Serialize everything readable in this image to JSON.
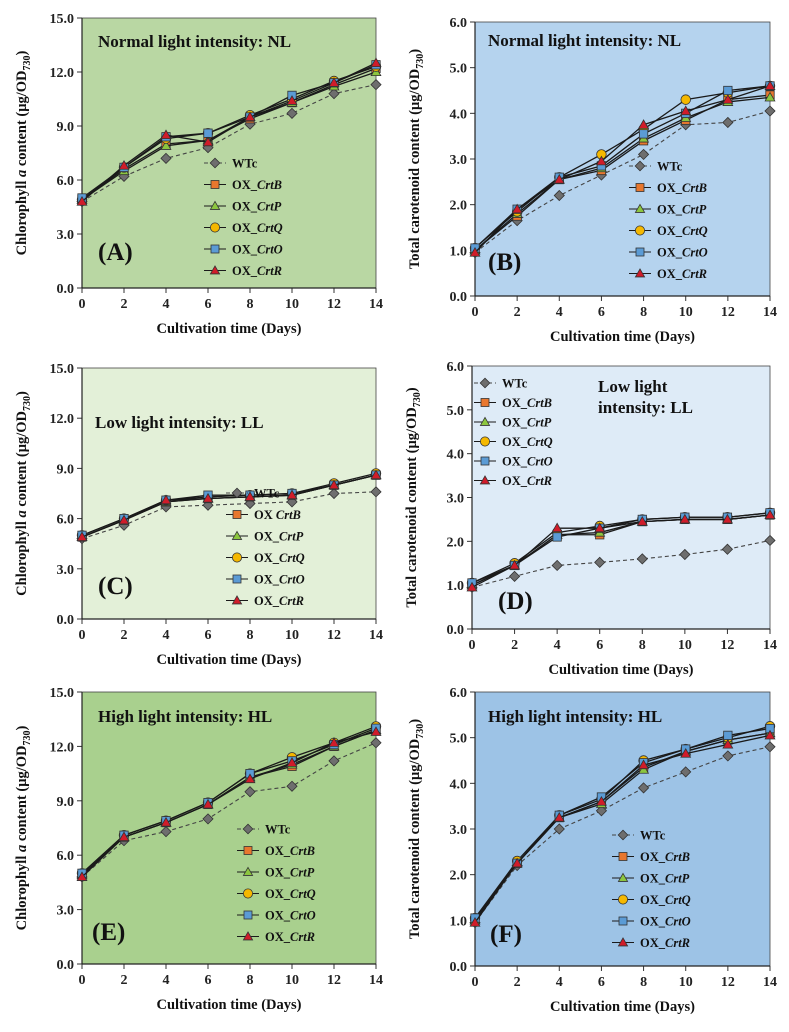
{
  "figure_colors": {
    "WTc": "#6e6e6e",
    "OX_CrtB": "#e8772e",
    "OX_CrtP": "#8cc63f",
    "OX_CrtQ": "#f5b800",
    "OX_CrtO": "#5b9bd5",
    "OX_CrtR": "#d01c2a"
  },
  "chart_data": [
    {
      "type": "line",
      "panel": "A",
      "title": "Normal light intensity: NL",
      "xlabel": "Cultivation time (Days)",
      "ylabel": "Chlorophyll a content (μg/OD730)",
      "ylabel_parts": [
        "Chlorophyll ",
        "a",
        " content (μg/OD",
        "730",
        ")"
      ],
      "x": [
        0,
        2,
        4,
        6,
        8,
        10,
        12,
        14
      ],
      "xticks": [
        "0",
        "2",
        "4",
        "6",
        "8",
        "10",
        "12",
        "14"
      ],
      "yticks": [
        "0.0",
        "3.0",
        "6.0",
        "9.0",
        "12.0",
        "15.0"
      ],
      "xlim": [
        0,
        14
      ],
      "ylim": [
        0,
        15
      ],
      "background": "#b9d7a3",
      "legend_position": "center-right",
      "series": [
        {
          "name": "WTc",
          "label_prefix": "WTc",
          "label_gene": "",
          "values": [
            4.8,
            6.2,
            7.2,
            7.8,
            9.1,
            9.7,
            10.8,
            11.3
          ]
        },
        {
          "name": "OX_CrtB",
          "label_prefix": "OX_",
          "label_gene": "CrtB",
          "values": [
            4.9,
            6.6,
            8.0,
            8.2,
            9.4,
            10.3,
            11.3,
            12.2
          ]
        },
        {
          "name": "OX_CrtP",
          "label_prefix": "OX_",
          "label_gene": "CrtP",
          "values": [
            4.9,
            6.5,
            7.9,
            8.2,
            9.5,
            10.3,
            11.2,
            12.0
          ]
        },
        {
          "name": "OX_CrtQ",
          "label_prefix": "OX_",
          "label_gene": "CrtQ",
          "values": [
            4.9,
            6.7,
            8.3,
            8.6,
            9.6,
            10.5,
            11.5,
            12.3
          ]
        },
        {
          "name": "OX_CrtO",
          "label_prefix": "OX_",
          "label_gene": "CrtO",
          "values": [
            5.0,
            6.7,
            8.4,
            8.6,
            9.5,
            10.7,
            11.4,
            12.4
          ]
        },
        {
          "name": "OX_CrtR",
          "label_prefix": "OX_",
          "label_gene": "CrtR",
          "values": [
            4.8,
            6.8,
            8.5,
            8.1,
            9.5,
            10.4,
            11.4,
            12.5
          ]
        }
      ]
    },
    {
      "type": "line",
      "panel": "B",
      "title": "Normal light intensity: NL",
      "xlabel": "Cultivation time (Days)",
      "ylabel": "Total carotenoid content (μg/OD730)",
      "ylabel_parts": [
        "Total carotenoid content (μg/OD",
        "730",
        ")"
      ],
      "x": [
        0,
        2,
        4,
        6,
        8,
        10,
        12,
        14
      ],
      "xticks": [
        "0",
        "2",
        "4",
        "6",
        "8",
        "10",
        "12",
        "14"
      ],
      "yticks": [
        "0.0",
        "1.0",
        "2.0",
        "3.0",
        "4.0",
        "5.0",
        "6.0"
      ],
      "xlim": [
        0,
        14
      ],
      "ylim": [
        0,
        6
      ],
      "background": "#b5d3ee",
      "legend_position": "center-right",
      "series": [
        {
          "name": "WTc",
          "label_prefix": "WTc",
          "label_gene": "",
          "values": [
            0.95,
            1.65,
            2.2,
            2.65,
            3.1,
            3.75,
            3.8,
            4.05
          ]
        },
        {
          "name": "OX_CrtB",
          "label_prefix": "OX_",
          "label_gene": "CrtB",
          "values": [
            1.0,
            1.75,
            2.55,
            2.75,
            3.4,
            3.85,
            4.3,
            4.4
          ]
        },
        {
          "name": "OX_CrtP",
          "label_prefix": "OX_",
          "label_gene": "CrtP",
          "values": [
            1.0,
            1.8,
            2.55,
            2.8,
            3.45,
            3.9,
            4.25,
            4.35
          ]
        },
        {
          "name": "OX_CrtQ",
          "label_prefix": "OX_",
          "label_gene": "CrtQ",
          "values": [
            1.05,
            1.85,
            2.6,
            3.1,
            3.65,
            4.3,
            4.45,
            4.6
          ]
        },
        {
          "name": "OX_CrtO",
          "label_prefix": "OX_",
          "label_gene": "CrtO",
          "values": [
            1.05,
            1.9,
            2.6,
            2.85,
            3.55,
            4.0,
            4.5,
            4.6
          ]
        },
        {
          "name": "OX_CrtR",
          "label_prefix": "OX_",
          "label_gene": "CrtR",
          "values": [
            0.95,
            1.9,
            2.55,
            2.95,
            3.75,
            4.05,
            4.3,
            4.6
          ]
        }
      ]
    },
    {
      "type": "line",
      "panel": "C",
      "title": "Low light intensity: LL",
      "xlabel": "Cultivation time (Days)",
      "ylabel": "Chlorophyll a content (μg/OD730)",
      "ylabel_parts": [
        "Chlorophyll ",
        "a",
        " content (μg/OD",
        "730",
        ")"
      ],
      "x": [
        0,
        2,
        4,
        6,
        8,
        10,
        12,
        14
      ],
      "xticks": [
        "0",
        "2",
        "4",
        "6",
        "8",
        "10",
        "12",
        "14"
      ],
      "yticks": [
        "0.0",
        "3.0",
        "6.0",
        "9.0",
        "12.0",
        "15.0"
      ],
      "xlim": [
        0,
        14
      ],
      "ylim": [
        0,
        15
      ],
      "background": "#e3f0d8",
      "legend_position": "lower-right",
      "series": [
        {
          "name": "WTc",
          "label_prefix": "WTc",
          "label_gene": "",
          "values": [
            4.8,
            5.6,
            6.7,
            6.8,
            6.9,
            7.0,
            7.5,
            7.6
          ]
        },
        {
          "name": "OX_CrtB",
          "label_prefix": "OX  ",
          "label_gene": "CrtB",
          "values": [
            4.9,
            5.9,
            7.0,
            7.2,
            7.3,
            7.4,
            8.0,
            8.6
          ]
        },
        {
          "name": "OX_CrtP",
          "label_prefix": "OX_",
          "label_gene": "CrtP",
          "values": [
            4.9,
            5.9,
            7.0,
            7.2,
            7.3,
            7.4,
            8.0,
            8.6
          ]
        },
        {
          "name": "OX_CrtQ",
          "label_prefix": "OX_",
          "label_gene": "CrtQ",
          "values": [
            5.0,
            6.0,
            7.1,
            7.3,
            7.4,
            7.5,
            8.1,
            8.7
          ]
        },
        {
          "name": "OX_CrtO",
          "label_prefix": "OX_",
          "label_gene": "CrtO",
          "values": [
            5.0,
            6.0,
            7.1,
            7.4,
            7.4,
            7.5,
            8.0,
            8.6
          ]
        },
        {
          "name": "OX_CrtR",
          "label_prefix": "OX_",
          "label_gene": "CrtR",
          "values": [
            4.9,
            5.9,
            7.1,
            7.2,
            7.3,
            7.4,
            8.0,
            8.6
          ]
        }
      ]
    },
    {
      "type": "line",
      "panel": "D",
      "title": "Low light intensity: LL",
      "title_lines": [
        "Low light",
        "intensity: LL"
      ],
      "xlabel": "Cultivation time (Days)",
      "ylabel": "Total carotenoid content (μg/OD730)",
      "ylabel_parts": [
        "Total carotenoid content (μg/OD",
        "730",
        ")"
      ],
      "x": [
        0,
        2,
        4,
        6,
        8,
        10,
        12,
        14
      ],
      "xticks": [
        "0",
        "2",
        "4",
        "6",
        "8",
        "10",
        "12",
        "14"
      ],
      "yticks": [
        "0.0",
        "1.0",
        "2.0",
        "3.0",
        "4.0",
        "5.0",
        "6.0"
      ],
      "xlim": [
        0,
        14
      ],
      "ylim": [
        0,
        6
      ],
      "background": "#deebf7",
      "legend_position": "upper-left",
      "series": [
        {
          "name": "WTc",
          "label_prefix": "WTc",
          "label_gene": "",
          "values": [
            0.95,
            1.2,
            1.45,
            1.52,
            1.6,
            1.7,
            1.82,
            2.02
          ]
        },
        {
          "name": "OX_CrtB",
          "label_prefix": "OX_",
          "label_gene": "CrtB",
          "values": [
            1.0,
            1.45,
            2.15,
            2.15,
            2.45,
            2.5,
            2.5,
            2.6
          ]
        },
        {
          "name": "OX_CrtP",
          "label_prefix": "OX_",
          "label_gene": "CrtP",
          "values": [
            1.0,
            1.45,
            2.15,
            2.2,
            2.45,
            2.5,
            2.5,
            2.6
          ]
        },
        {
          "name": "OX_CrtQ",
          "label_prefix": "OX_",
          "label_gene": "CrtQ",
          "values": [
            1.05,
            1.5,
            2.2,
            2.35,
            2.5,
            2.55,
            2.55,
            2.65
          ]
        },
        {
          "name": "OX_CrtO",
          "label_prefix": "OX_",
          "label_gene": "CrtO",
          "values": [
            1.05,
            1.45,
            2.1,
            2.3,
            2.5,
            2.55,
            2.55,
            2.65
          ]
        },
        {
          "name": "OX_CrtR",
          "label_prefix": "OX_",
          "label_gene": "CrtR",
          "values": [
            0.95,
            1.45,
            2.3,
            2.3,
            2.45,
            2.5,
            2.5,
            2.6
          ]
        }
      ]
    },
    {
      "type": "line",
      "panel": "E",
      "title": "High light intensity: HL",
      "xlabel": "Cultivation time (Days)",
      "ylabel": "Chlorophyll a content (μg/OD730)",
      "ylabel_parts": [
        "Chlorophyll ",
        "a",
        " content (μg/OD",
        "730",
        ")"
      ],
      "x": [
        0,
        2,
        4,
        6,
        8,
        10,
        12,
        14
      ],
      "xticks": [
        "0",
        "2",
        "4",
        "6",
        "8",
        "10",
        "12",
        "14"
      ],
      "yticks": [
        "0.0",
        "3.0",
        "6.0",
        "9.0",
        "12.0",
        "15.0"
      ],
      "xlim": [
        0,
        14
      ],
      "ylim": [
        0,
        15
      ],
      "background": "#a9d08e",
      "legend_position": "lower-right",
      "series": [
        {
          "name": "WTc",
          "label_prefix": "WTc",
          "label_gene": "",
          "values": [
            4.8,
            6.8,
            7.3,
            8.0,
            9.5,
            9.8,
            11.2,
            12.2
          ]
        },
        {
          "name": "OX_CrtB",
          "label_prefix": "OX_",
          "label_gene": "CrtB",
          "values": [
            4.9,
            7.0,
            7.8,
            8.8,
            10.3,
            10.9,
            12.0,
            12.9
          ]
        },
        {
          "name": "OX_CrtP",
          "label_prefix": "OX_",
          "label_gene": "CrtP",
          "values": [
            4.9,
            7.0,
            7.8,
            8.8,
            10.3,
            11.0,
            12.0,
            12.9
          ]
        },
        {
          "name": "OX_CrtQ",
          "label_prefix": "OX_",
          "label_gene": "CrtQ",
          "values": [
            5.0,
            7.1,
            7.9,
            8.9,
            10.5,
            11.4,
            12.2,
            13.1
          ]
        },
        {
          "name": "OX_CrtO",
          "label_prefix": "OX_",
          "label_gene": "CrtO",
          "values": [
            5.0,
            7.1,
            7.9,
            8.9,
            10.5,
            11.2,
            12.1,
            13.0
          ]
        },
        {
          "name": "OX_CrtR",
          "label_prefix": "OX_",
          "label_gene": "CrtR",
          "values": [
            4.8,
            7.0,
            7.8,
            8.8,
            10.2,
            11.1,
            12.2,
            12.8
          ]
        }
      ]
    },
    {
      "type": "line",
      "panel": "F",
      "title": "High light intensity: HL",
      "xlabel": "Cultivation time (Days)",
      "ylabel": "Total carotenoid content (μg/OD730)",
      "ylabel_parts": [
        "Total carotenoid content  (μg/OD",
        "730",
        ")"
      ],
      "x": [
        0,
        2,
        4,
        6,
        8,
        10,
        12,
        14
      ],
      "xticks": [
        "0",
        "2",
        "4",
        "6",
        "8",
        "10",
        "12",
        "14"
      ],
      "yticks": [
        "0.0",
        "1.0",
        "2.0",
        "3.0",
        "4.0",
        "5.0",
        "6.0"
      ],
      "xlim": [
        0,
        14
      ],
      "ylim": [
        0,
        6
      ],
      "background": "#9dc3e6",
      "legend_position": "lower-right",
      "series": [
        {
          "name": "WTc",
          "label_prefix": "WTc",
          "label_gene": "",
          "values": [
            0.95,
            2.2,
            3.0,
            3.4,
            3.9,
            4.25,
            4.6,
            4.8
          ]
        },
        {
          "name": "OX_CrtB",
          "label_prefix": "OX_",
          "label_gene": "CrtB",
          "values": [
            1.0,
            2.25,
            3.25,
            3.6,
            4.35,
            4.7,
            4.95,
            5.1
          ]
        },
        {
          "name": "OX_CrtP",
          "label_prefix": "OX_",
          "label_gene": "CrtP",
          "values": [
            1.0,
            2.25,
            3.25,
            3.55,
            4.3,
            4.7,
            4.95,
            5.1
          ]
        },
        {
          "name": "OX_CrtQ",
          "label_prefix": "OX_",
          "label_gene": "CrtQ",
          "values": [
            1.05,
            2.3,
            3.3,
            3.65,
            4.5,
            4.75,
            5.0,
            5.25
          ]
        },
        {
          "name": "OX_CrtO",
          "label_prefix": "OX_",
          "label_gene": "CrtO",
          "values": [
            1.05,
            2.25,
            3.3,
            3.7,
            4.45,
            4.75,
            5.05,
            5.2
          ]
        },
        {
          "name": "OX_CrtR",
          "label_prefix": "OX_",
          "label_gene": "CrtR",
          "values": [
            0.95,
            2.25,
            3.25,
            3.6,
            4.4,
            4.65,
            4.85,
            5.05
          ]
        }
      ]
    }
  ]
}
